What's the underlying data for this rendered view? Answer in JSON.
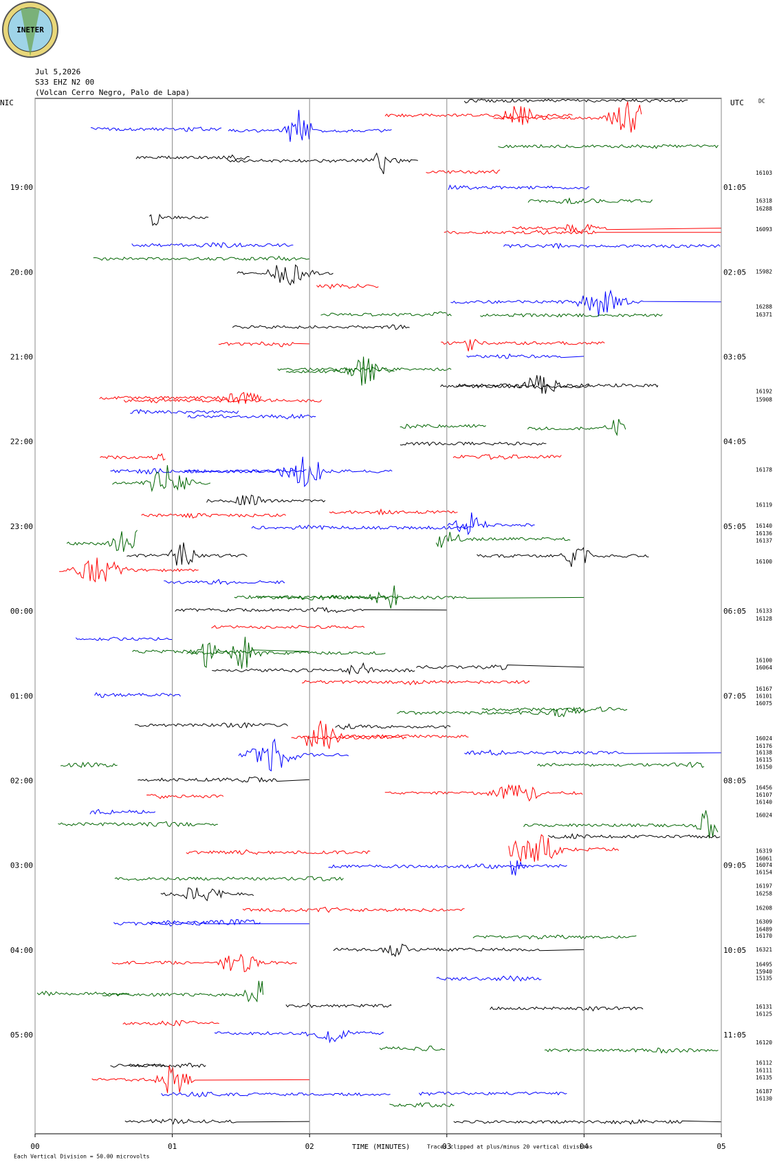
{
  "header": {
    "logo": "INETER",
    "date": "Jul 5,2026",
    "station": "S33 EHZ N2 00",
    "location": "(Volcan Cerro Negro, Palo de Lapa)"
  },
  "chart_data": {
    "type": "helicorder",
    "left_axis_title": "NIC",
    "right_axis_title": "UTC",
    "dc_title": "DC",
    "left_labels": [
      "19:00",
      "20:00",
      "21:00",
      "22:00",
      "23:00",
      "00:00",
      "01:00",
      "02:00",
      "03:00",
      "04:00",
      "05:00"
    ],
    "right_labels": [
      "01:05",
      "02:05",
      "03:05",
      "04:05",
      "05:05",
      "06:05",
      "07:05",
      "08:05",
      "09:05",
      "10:05",
      "11:05"
    ],
    "dc_values": [
      16103,
      16318,
      16288,
      16093,
      15982,
      16288,
      16371,
      16192,
      15908,
      16178,
      16119,
      16140,
      16136,
      16137,
      16100,
      16133,
      16128,
      16100,
      16064,
      16167,
      16101,
      16075,
      16024,
      16176,
      16138,
      16115,
      16150,
      16456,
      16107,
      16140,
      16024,
      16319,
      16061,
      16074,
      16154,
      16197,
      16258,
      16208,
      16309,
      16489,
      16170,
      16321,
      16495,
      15940,
      15135,
      16131,
      16125,
      16120,
      16112,
      16111,
      16135,
      16187,
      16130
    ],
    "x_label": "TIME (MINUTES)",
    "xlim": [
      0,
      5
    ],
    "xticks": [
      {
        "value": 0,
        "label": "00"
      },
      {
        "value": 1,
        "label": "01"
      },
      {
        "value": 2,
        "label": "02"
      },
      {
        "value": 3,
        "label": "03"
      },
      {
        "value": 4,
        "label": "04"
      },
      {
        "value": 5,
        "label": "05"
      }
    ],
    "trace_colors": [
      "#000000",
      "#ff0000",
      "#0000ff",
      "#006400"
    ],
    "scale_note": "Each Vertical Division =   50.00 microvolts",
    "clip_note": "Traces clipped at plus/minus 20 vertical divisions"
  }
}
